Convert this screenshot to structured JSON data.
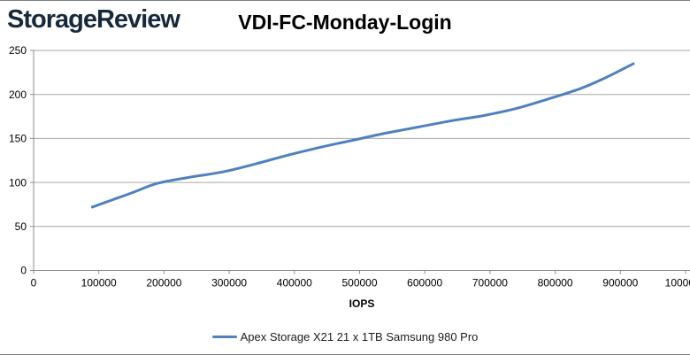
{
  "header": {
    "logo_text": "StorageReview",
    "title": "VDI-FC-Monday-Login"
  },
  "colors": {
    "series_line": "#4F81BD",
    "gridline": "#A6A6A6",
    "axis": "#8C8C8C",
    "text": "#000000",
    "logo": "#17293D",
    "frame_border": "#7F7F7F",
    "background": "#FFFFFF"
  },
  "chart_data": {
    "type": "line",
    "title": "VDI-FC-Monday-Login",
    "xlabel": "IOPS",
    "ylabel": "",
    "xlim": [
      0,
      1000000
    ],
    "ylim": [
      0,
      250
    ],
    "x_ticks": [
      0,
      100000,
      200000,
      300000,
      400000,
      500000,
      600000,
      700000,
      800000,
      900000,
      1000000
    ],
    "y_ticks": [
      0,
      50,
      100,
      150,
      200,
      250
    ],
    "grid": "horizontal",
    "smooth": true,
    "legend_position": "bottom",
    "series": [
      {
        "name": "Apex Storage X21 21 x 1TB Samsung 980 Pro",
        "color": "#4F81BD",
        "points": [
          [
            90000,
            72
          ],
          [
            120000,
            80
          ],
          [
            150000,
            88
          ],
          [
            190000,
            99
          ],
          [
            240000,
            106
          ],
          [
            290000,
            112
          ],
          [
            340000,
            121
          ],
          [
            390000,
            131
          ],
          [
            440000,
            140
          ],
          [
            490000,
            148
          ],
          [
            540000,
            156
          ],
          [
            590000,
            163
          ],
          [
            640000,
            170
          ],
          [
            690000,
            176
          ],
          [
            740000,
            184
          ],
          [
            790000,
            195
          ],
          [
            840000,
            207
          ],
          [
            880000,
            220
          ],
          [
            920000,
            235
          ]
        ]
      }
    ]
  }
}
